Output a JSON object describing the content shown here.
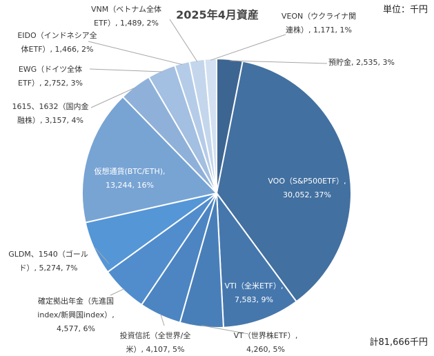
{
  "chart_data": {
    "type": "pie",
    "title": "2025年4月資産",
    "unit_label": "単位：千円",
    "total_label": "計81,666千円",
    "slices": [
      {
        "lines": [
          "預貯金, 2,535, 3%"
        ],
        "value": 2535,
        "percent": 3,
        "color": "#3d6591"
      },
      {
        "lines": [
          "VOO（S&P500ETF）,",
          "30,052, 37%"
        ],
        "value": 30052,
        "percent": 37,
        "color": "#4270a0"
      },
      {
        "lines": [
          "VTI（全米ETF）,",
          "7,583, 9%"
        ],
        "value": 7583,
        "percent": 9,
        "color": "#4577ad"
      },
      {
        "lines": [
          "VT（世界株ETF）,",
          "4,260, 5%"
        ],
        "value": 4260,
        "percent": 5,
        "color": "#497fb9"
      },
      {
        "lines": [
          "投資信託（全世界/全",
          "米）, 4,107, 5%"
        ],
        "value": 4107,
        "percent": 5,
        "color": "#4c85c2"
      },
      {
        "lines": [
          "確定拠出年金（先進国",
          "index/新興国index）,",
          "4,577, 6%"
        ],
        "value": 4577,
        "percent": 6,
        "color": "#518dcd"
      },
      {
        "lines": [
          "GLDM、1540（ゴール",
          "ド）, 5,274, 7%"
        ],
        "value": 5274,
        "percent": 7,
        "color": "#5596d6"
      },
      {
        "lines": [
          "仮想通貨(BTC/ETH),",
          "13,244, 16%"
        ],
        "value": 13244,
        "percent": 16,
        "color": "#78a4d4"
      },
      {
        "lines": [
          "1615、1632（国内金",
          "融株）, 3,157, 4%"
        ],
        "value": 3157,
        "percent": 4,
        "color": "#8fb1d9"
      },
      {
        "lines": [
          "EWG（ドイツ全体",
          "ETF）, 2,752, 3%"
        ],
        "value": 2752,
        "percent": 3,
        "color": "#a3bfe1"
      },
      {
        "lines": [
          "EIDO（インドネシア全",
          "体ETF）, 1,466, 2%"
        ],
        "value": 1466,
        "percent": 2,
        "color": "#b5cce8"
      },
      {
        "lines": [
          "VNM（ベトナム全体",
          "ETF）, 1,489, 2%"
        ],
        "value": 1489,
        "percent": 2,
        "color": "#c4d6ec"
      },
      {
        "lines": [
          "VEON（ウクライナ関",
          "連株）, 1,171, 1%"
        ],
        "value": 1171,
        "percent": 1,
        "color": "#d3e0f1"
      }
    ]
  }
}
